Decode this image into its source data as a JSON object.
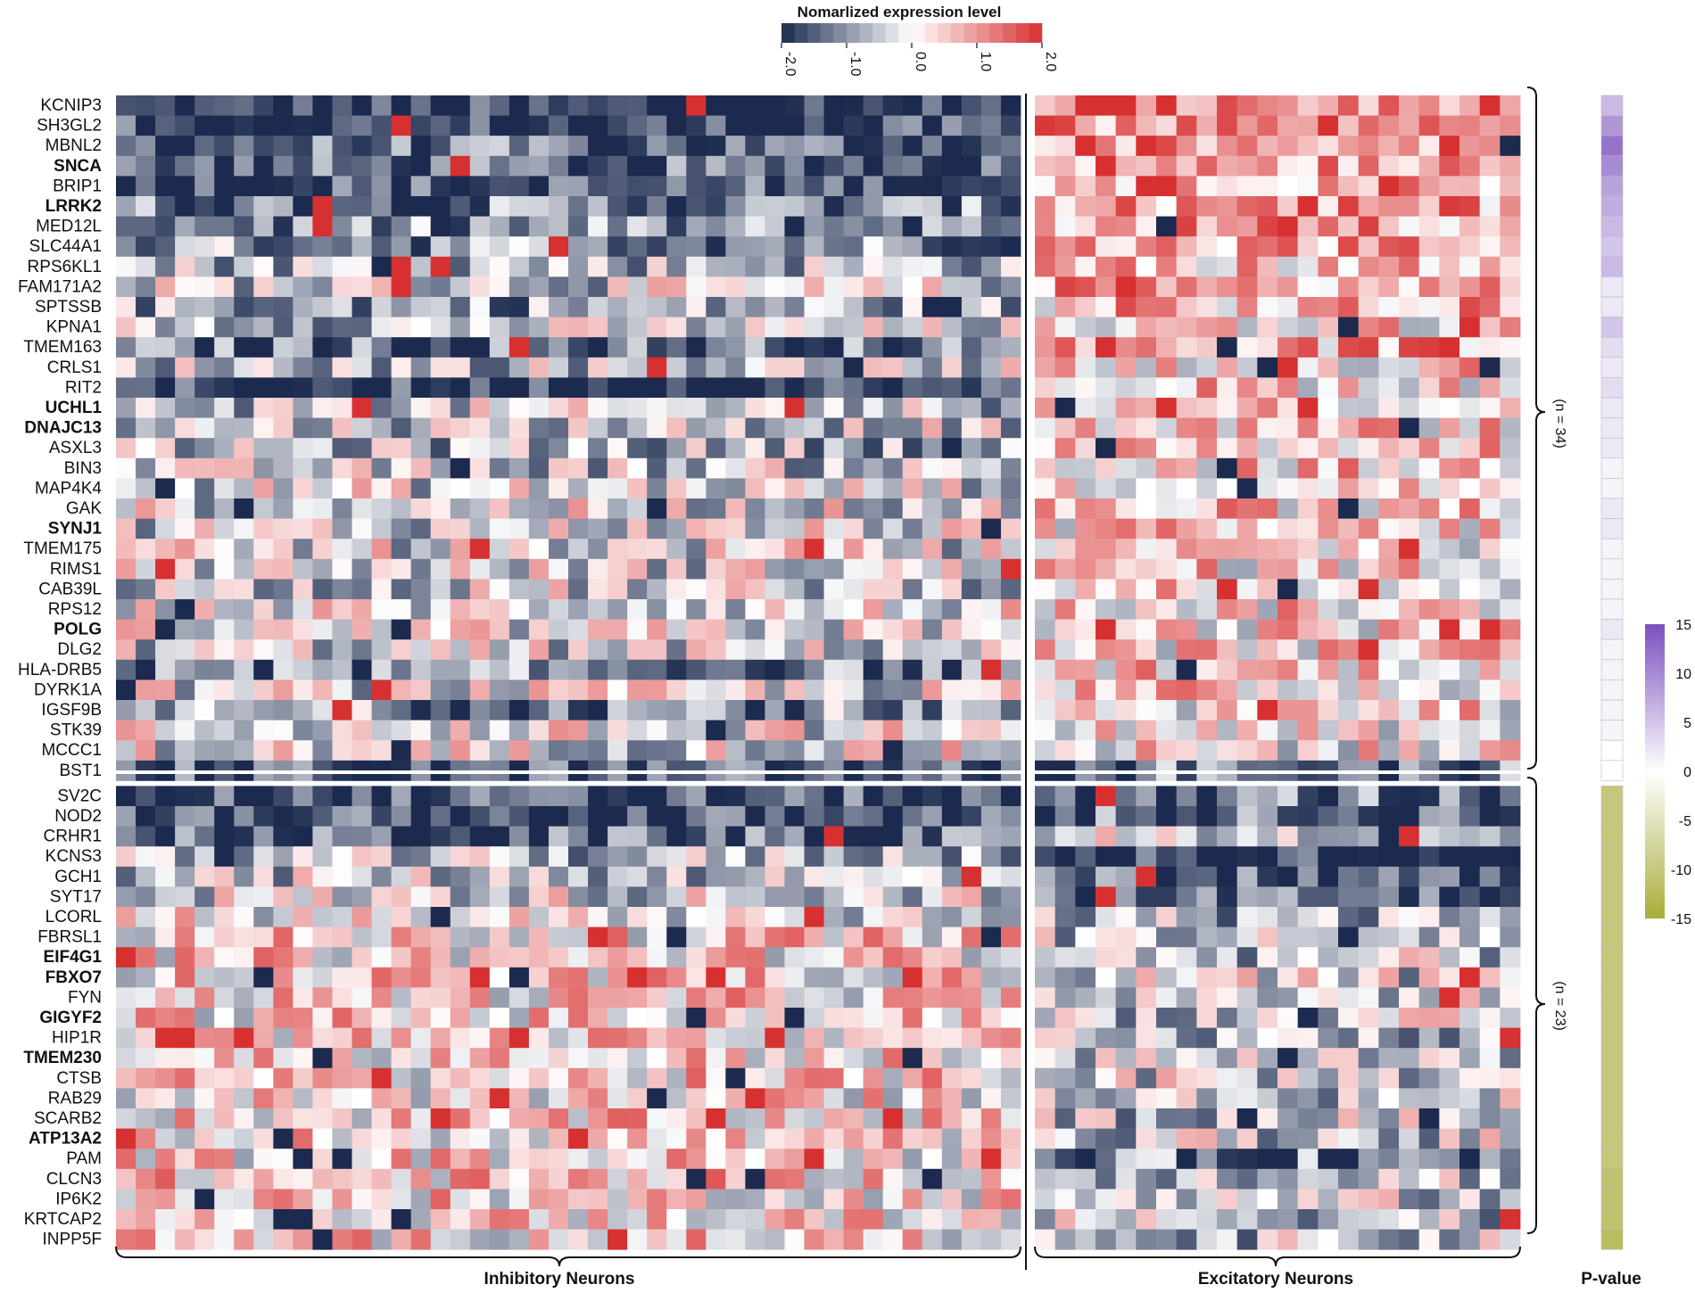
{
  "chart_data": {
    "type": "heatmap",
    "colorbar": {
      "title": "Nomarlized expression level",
      "ticks": [
        "-2.0",
        "-1.0",
        "0.0",
        "1.0",
        "2.0"
      ],
      "range": [
        -2.0,
        2.0
      ],
      "colors": {
        "low": "#1b2a4e",
        "mid": "#ffffff",
        "high": "#d73030"
      }
    },
    "pvalue_scale": {
      "title": "P-value",
      "ticks": [
        "15",
        "10",
        "5",
        "0",
        "-5",
        "-10",
        "-15"
      ],
      "colors": {
        "high": "#7b4fbf",
        "mid": "#ffffff",
        "low": "#a8ad3a"
      }
    },
    "groups": [
      {
        "label": "Inhibitory Neurons",
        "n_columns": 46
      },
      {
        "label": "Excitatory Neurons",
        "n_columns": 24
      }
    ],
    "row_blocks": [
      {
        "count_label": "(n = 34)",
        "n_rows": 34
      },
      {
        "count_label": "(n = 23)",
        "n_rows": 23
      }
    ],
    "genes": [
      {
        "name": "KCNIP3",
        "bold": false,
        "inh": -1.9,
        "exc": 1.3,
        "p": 6
      },
      {
        "name": "SH3GL2",
        "bold": false,
        "inh": -1.8,
        "exc": 1.2,
        "p": 9
      },
      {
        "name": "MBNL2",
        "bold": false,
        "inh": -1.4,
        "exc": 1.1,
        "p": 12
      },
      {
        "name": "SNCA",
        "bold": true,
        "inh": -1.5,
        "exc": 1.1,
        "p": 10
      },
      {
        "name": "BRIP1",
        "bold": false,
        "inh": -1.6,
        "exc": 1.0,
        "p": 8
      },
      {
        "name": "LRRK2",
        "bold": true,
        "inh": -1.2,
        "exc": 0.9,
        "p": 7
      },
      {
        "name": "MED12L",
        "bold": false,
        "inh": -1.1,
        "exc": 1.0,
        "p": 6
      },
      {
        "name": "SLC44A1",
        "bold": false,
        "inh": -0.9,
        "exc": 0.8,
        "p": 5
      },
      {
        "name": "RPS6KL1",
        "bold": false,
        "inh": -0.5,
        "exc": 0.5,
        "p": 6
      },
      {
        "name": "FAM171A2",
        "bold": false,
        "inh": -0.3,
        "exc": 0.7,
        "p": 2
      },
      {
        "name": "SPTSSB",
        "bold": false,
        "inh": -0.8,
        "exc": 0.6,
        "p": 2
      },
      {
        "name": "KPNA1",
        "bold": false,
        "inh": -0.4,
        "exc": 0.4,
        "p": 5
      },
      {
        "name": "TMEM163",
        "bold": false,
        "inh": -1.3,
        "exc": 0.8,
        "p": 3
      },
      {
        "name": "CRLS1",
        "bold": false,
        "inh": -0.4,
        "exc": 0.4,
        "p": 2
      },
      {
        "name": "RIT2",
        "bold": false,
        "inh": -1.8,
        "exc": 0.4,
        "p": 3
      },
      {
        "name": "UCHL1",
        "bold": true,
        "inh": -0.4,
        "exc": 0.4,
        "p": 2
      },
      {
        "name": "DNAJC13",
        "bold": true,
        "inh": -0.3,
        "exc": 0.4,
        "p": 2
      },
      {
        "name": "ASXL3",
        "bold": false,
        "inh": -0.6,
        "exc": 0.5,
        "p": 2
      },
      {
        "name": "BIN3",
        "bold": false,
        "inh": -0.4,
        "exc": 0.4,
        "p": 1
      },
      {
        "name": "MAP4K4",
        "bold": false,
        "inh": -0.2,
        "exc": 0.4,
        "p": 1
      },
      {
        "name": "GAK",
        "bold": false,
        "inh": -0.2,
        "exc": 0.4,
        "p": 2
      },
      {
        "name": "SYNJ1",
        "bold": true,
        "inh": -0.2,
        "exc": 0.3,
        "p": 2
      },
      {
        "name": "TMEM175",
        "bold": false,
        "inh": -0.2,
        "exc": 0.3,
        "p": 1
      },
      {
        "name": "RIMS1",
        "bold": false,
        "inh": -0.2,
        "exc": 0.3,
        "p": 1
      },
      {
        "name": "CAB39L",
        "bold": false,
        "inh": -0.3,
        "exc": 0.4,
        "p": 1
      },
      {
        "name": "RPS12",
        "bold": false,
        "inh": -0.1,
        "exc": 0.3,
        "p": 1
      },
      {
        "name": "POLG",
        "bold": true,
        "inh": -0.2,
        "exc": 0.3,
        "p": 2
      },
      {
        "name": "DLG2",
        "bold": false,
        "inh": -0.3,
        "exc": 0.3,
        "p": 1
      },
      {
        "name": "HLA-DRB5",
        "bold": false,
        "inh": -1.2,
        "exc": 0.5,
        "p": 1
      },
      {
        "name": "DYRK1A",
        "bold": false,
        "inh": -0.2,
        "exc": 0.3,
        "p": 1
      },
      {
        "name": "IGSF9B",
        "bold": false,
        "inh": -0.9,
        "exc": 0.3,
        "p": 1
      },
      {
        "name": "STK39",
        "bold": false,
        "inh": -0.1,
        "exc": 0.2,
        "p": 1
      },
      {
        "name": "MCCC1",
        "bold": false,
        "inh": -0.1,
        "exc": 0.1,
        "p": 0
      },
      {
        "name": "BST1",
        "bold": false,
        "inh": -1.6,
        "exc": -1.2,
        "p": 0
      },
      {
        "name": "SV2C",
        "bold": false,
        "inh": -1.7,
        "exc": -1.2,
        "p": -10
      },
      {
        "name": "NOD2",
        "bold": false,
        "inh": -1.7,
        "exc": -1.4,
        "p": -10
      },
      {
        "name": "CRHR1",
        "bold": false,
        "inh": -1.5,
        "exc": -0.3,
        "p": -10
      },
      {
        "name": "KCNS3",
        "bold": false,
        "inh": -0.6,
        "exc": -1.9,
        "p": -10
      },
      {
        "name": "GCH1",
        "bold": false,
        "inh": -0.4,
        "exc": -1.5,
        "p": -10
      },
      {
        "name": "SYT17",
        "bold": false,
        "inh": -0.2,
        "exc": -1.4,
        "p": -10
      },
      {
        "name": "LCORL",
        "bold": false,
        "inh": -0.1,
        "exc": -0.6,
        "p": -10
      },
      {
        "name": "FBRSL1",
        "bold": false,
        "inh": 0.3,
        "exc": -0.4,
        "p": -10
      },
      {
        "name": "EIF4G1",
        "bold": true,
        "inh": 0.3,
        "exc": -0.4,
        "p": -10
      },
      {
        "name": "FBXO7",
        "bold": true,
        "inh": 0.3,
        "exc": -0.3,
        "p": -10
      },
      {
        "name": "FYN",
        "bold": false,
        "inh": 0.3,
        "exc": -0.3,
        "p": -10
      },
      {
        "name": "GIGYF2",
        "bold": true,
        "inh": 0.3,
        "exc": -0.3,
        "p": -10
      },
      {
        "name": "HIP1R",
        "bold": false,
        "inh": 0.3,
        "exc": -0.6,
        "p": -10
      },
      {
        "name": "TMEM230",
        "bold": true,
        "inh": 0.3,
        "exc": -0.3,
        "p": -10
      },
      {
        "name": "CTSB",
        "bold": false,
        "inh": 0.3,
        "exc": -0.3,
        "p": -10
      },
      {
        "name": "RAB29",
        "bold": false,
        "inh": 0.2,
        "exc": -0.4,
        "p": -10
      },
      {
        "name": "SCARB2",
        "bold": false,
        "inh": 0.3,
        "exc": -0.4,
        "p": -10
      },
      {
        "name": "ATP13A2",
        "bold": true,
        "inh": 0.3,
        "exc": -0.3,
        "p": -10
      },
      {
        "name": "PAM",
        "bold": false,
        "inh": 0.3,
        "exc": -1.2,
        "p": -10
      },
      {
        "name": "CLCN3",
        "bold": false,
        "inh": 0.4,
        "exc": -0.3,
        "p": -11
      },
      {
        "name": "IP6K2",
        "bold": false,
        "inh": 0.3,
        "exc": -0.4,
        "p": -11
      },
      {
        "name": "KRTCAP2",
        "bold": false,
        "inh": 0.3,
        "exc": -0.4,
        "p": -11
      },
      {
        "name": "INPP5F",
        "bold": false,
        "inh": 0.3,
        "exc": -0.5,
        "p": -12
      }
    ]
  }
}
